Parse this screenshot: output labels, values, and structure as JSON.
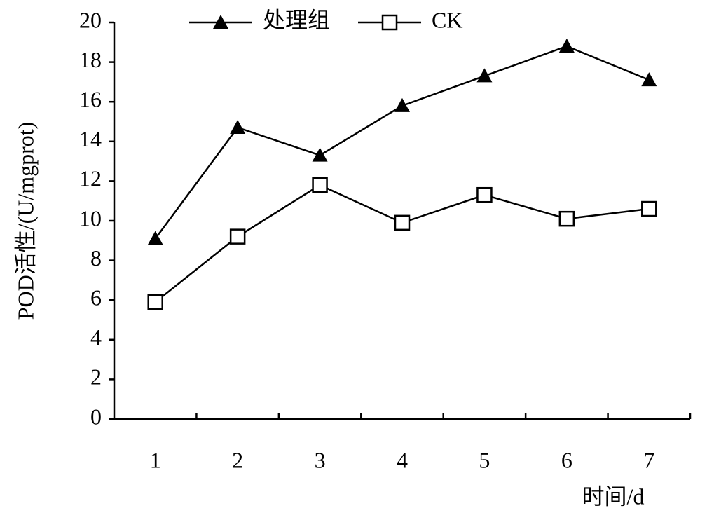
{
  "chart_data": {
    "type": "line",
    "x_label": "时间/d",
    "y_label": "POD活性/(U/mgprot)",
    "categories": [
      "1",
      "2",
      "3",
      "4",
      "5",
      "6",
      "7"
    ],
    "series": [
      {
        "name": "处理组",
        "color": "#000000",
        "marker": "triangle",
        "values": [
          9.1,
          14.7,
          13.3,
          15.8,
          17.3,
          18.8,
          17.1
        ]
      },
      {
        "name": "CK",
        "color": "#000000",
        "marker": "square",
        "values": [
          5.9,
          9.2,
          11.8,
          9.9,
          11.3,
          10.1,
          10.6
        ]
      }
    ],
    "ylim": [
      0,
      20
    ],
    "yticks": [
      0,
      2,
      4,
      6,
      8,
      10,
      12,
      14,
      16,
      18,
      20
    ],
    "grid": false,
    "legend": "top"
  }
}
